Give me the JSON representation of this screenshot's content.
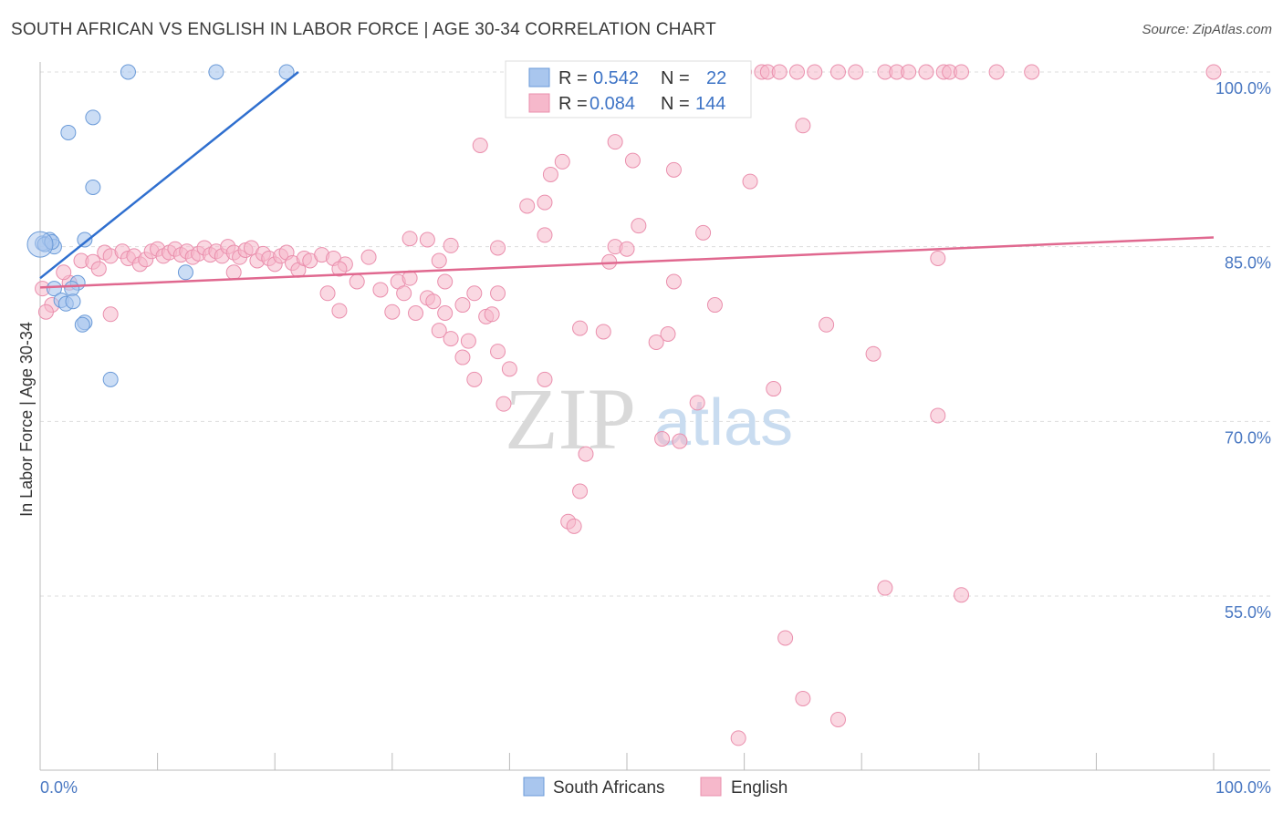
{
  "title": "SOUTH AFRICAN VS ENGLISH IN LABOR FORCE | AGE 30-34 CORRELATION CHART",
  "source": "Source: ZipAtlas.com",
  "watermark": {
    "zip": "ZIP",
    "atlas": "atlas"
  },
  "legend": {
    "rows": [
      {
        "r_label": "R =",
        "r_value": "0.542",
        "n_label": "N =",
        "n_value": "22"
      },
      {
        "r_label": "R =",
        "r_value": "0.084",
        "n_label": "N =",
        "n_value": "144"
      }
    ]
  },
  "bottom_legend": [
    "South Africans",
    "English"
  ],
  "colors": {
    "blue_fill": "#a9c6ee",
    "blue_stroke": "#6a9ad8",
    "blue_line": "#2f6fcf",
    "pink_fill": "#f6b8cb",
    "pink_stroke": "#ea8fad",
    "pink_line": "#e0688f",
    "grid": "#dddddd",
    "tick_text": "#4a78c2"
  },
  "chart_data": {
    "type": "scatter",
    "title": "SOUTH AFRICAN VS ENGLISH IN LABOR FORCE | AGE 30-34 CORRELATION CHART",
    "xlabel": "",
    "ylabel": "In Labor Force | Age 30-34",
    "xlim": [
      0,
      100
    ],
    "ylim": [
      40,
      101
    ],
    "x_ticks": [
      "0.0%",
      "100.0%"
    ],
    "y_ticks": [
      {
        "value": 100,
        "label": "100.0%"
      },
      {
        "value": 85,
        "label": "85.0%"
      },
      {
        "value": 70,
        "label": "70.0%"
      },
      {
        "value": 55,
        "label": "55.0%"
      }
    ],
    "series": [
      {
        "name": "South Africans",
        "color": "#a9c6ee",
        "trend": {
          "x": [
            0,
            22
          ],
          "y": [
            82.3,
            100
          ]
        },
        "points": [
          {
            "x": 7.5,
            "y": 100
          },
          {
            "x": 15,
            "y": 100
          },
          {
            "x": 21,
            "y": 100
          },
          {
            "x": 4.5,
            "y": 96.1
          },
          {
            "x": 2.4,
            "y": 94.8
          },
          {
            "x": 4.5,
            "y": 90.1
          },
          {
            "x": 0.2,
            "y": 85.3
          },
          {
            "x": 0.8,
            "y": 85.6
          },
          {
            "x": 1.2,
            "y": 85.0
          },
          {
            "x": 3.8,
            "y": 85.6
          },
          {
            "x": 12.4,
            "y": 82.8
          },
          {
            "x": 1.2,
            "y": 81.4
          },
          {
            "x": 3.2,
            "y": 81.9
          },
          {
            "x": 2.7,
            "y": 81.4
          },
          {
            "x": 1.8,
            "y": 80.4
          },
          {
            "x": 2.2,
            "y": 80.1
          },
          {
            "x": 2.8,
            "y": 80.3
          },
          {
            "x": 3.8,
            "y": 78.5
          },
          {
            "x": 3.6,
            "y": 78.3
          },
          {
            "x": 6.0,
            "y": 73.6
          },
          {
            "x": 0.4,
            "y": 85.2
          },
          {
            "x": 1.0,
            "y": 85.4
          }
        ]
      },
      {
        "name": "English",
        "color": "#f6b8cb",
        "trend": {
          "x": [
            0,
            100
          ],
          "y": [
            81.5,
            85.8
          ]
        },
        "points": [
          {
            "x": 51,
            "y": 100
          },
          {
            "x": 52.5,
            "y": 100
          },
          {
            "x": 56,
            "y": 100
          },
          {
            "x": 60,
            "y": 100
          },
          {
            "x": 61.5,
            "y": 100
          },
          {
            "x": 62,
            "y": 100
          },
          {
            "x": 63,
            "y": 100
          },
          {
            "x": 64.5,
            "y": 100
          },
          {
            "x": 66,
            "y": 100
          },
          {
            "x": 68,
            "y": 100
          },
          {
            "x": 69.5,
            "y": 100
          },
          {
            "x": 72,
            "y": 100
          },
          {
            "x": 73,
            "y": 100
          },
          {
            "x": 74,
            "y": 100
          },
          {
            "x": 75.5,
            "y": 100
          },
          {
            "x": 77,
            "y": 100
          },
          {
            "x": 77.5,
            "y": 100
          },
          {
            "x": 78.5,
            "y": 100
          },
          {
            "x": 81.5,
            "y": 100
          },
          {
            "x": 84.5,
            "y": 100
          },
          {
            "x": 100,
            "y": 100
          },
          {
            "x": 52,
            "y": 99.5
          },
          {
            "x": 65,
            "y": 95.4
          },
          {
            "x": 49,
            "y": 94.0
          },
          {
            "x": 37.5,
            "y": 93.7
          },
          {
            "x": 50.5,
            "y": 92.4
          },
          {
            "x": 44.5,
            "y": 92.3
          },
          {
            "x": 43.5,
            "y": 91.2
          },
          {
            "x": 54,
            "y": 91.6
          },
          {
            "x": 60.5,
            "y": 90.6
          },
          {
            "x": 43.0,
            "y": 88.8
          },
          {
            "x": 41.5,
            "y": 88.5
          },
          {
            "x": 51,
            "y": 86.8
          },
          {
            "x": 43.0,
            "y": 86.0
          },
          {
            "x": 56.5,
            "y": 86.2
          },
          {
            "x": 39.0,
            "y": 84.9
          },
          {
            "x": 49,
            "y": 85.0
          },
          {
            "x": 50,
            "y": 84.8
          },
          {
            "x": 48.5,
            "y": 83.7
          },
          {
            "x": 76.5,
            "y": 84.0
          },
          {
            "x": 33,
            "y": 85.6
          },
          {
            "x": 31.5,
            "y": 85.7
          },
          {
            "x": 35.0,
            "y": 85.1
          },
          {
            "x": 2.5,
            "y": 81.9
          },
          {
            "x": 2.0,
            "y": 82.8
          },
          {
            "x": 3.5,
            "y": 83.8
          },
          {
            "x": 4.5,
            "y": 83.7
          },
          {
            "x": 5.0,
            "y": 83.1
          },
          {
            "x": 5.5,
            "y": 84.5
          },
          {
            "x": 6.0,
            "y": 84.2
          },
          {
            "x": 7.0,
            "y": 84.6
          },
          {
            "x": 7.5,
            "y": 84.0
          },
          {
            "x": 8.0,
            "y": 84.2
          },
          {
            "x": 8.5,
            "y": 83.5
          },
          {
            "x": 9.0,
            "y": 83.9
          },
          {
            "x": 9.5,
            "y": 84.6
          },
          {
            "x": 10.0,
            "y": 84.8
          },
          {
            "x": 10.5,
            "y": 84.2
          },
          {
            "x": 11.0,
            "y": 84.5
          },
          {
            "x": 11.5,
            "y": 84.8
          },
          {
            "x": 12.0,
            "y": 84.3
          },
          {
            "x": 12.5,
            "y": 84.6
          },
          {
            "x": 13.0,
            "y": 84.1
          },
          {
            "x": 13.5,
            "y": 84.4
          },
          {
            "x": 14.0,
            "y": 84.9
          },
          {
            "x": 14.5,
            "y": 84.3
          },
          {
            "x": 15.0,
            "y": 84.6
          },
          {
            "x": 15.5,
            "y": 84.2
          },
          {
            "x": 16.0,
            "y": 85.0
          },
          {
            "x": 16.5,
            "y": 84.5
          },
          {
            "x": 17.0,
            "y": 84.1
          },
          {
            "x": 17.5,
            "y": 84.7
          },
          {
            "x": 18.0,
            "y": 84.9
          },
          {
            "x": 18.5,
            "y": 83.8
          },
          {
            "x": 19.0,
            "y": 84.4
          },
          {
            "x": 19.5,
            "y": 84.0
          },
          {
            "x": 20.0,
            "y": 83.5
          },
          {
            "x": 20.5,
            "y": 84.2
          },
          {
            "x": 21.0,
            "y": 84.5
          },
          {
            "x": 21.5,
            "y": 83.6
          },
          {
            "x": 22.0,
            "y": 83.0
          },
          {
            "x": 22.5,
            "y": 84.0
          },
          {
            "x": 23.0,
            "y": 83.8
          },
          {
            "x": 24.0,
            "y": 84.3
          },
          {
            "x": 25.0,
            "y": 84.0
          },
          {
            "x": 26.0,
            "y": 83.5
          },
          {
            "x": 27.0,
            "y": 82.0
          },
          {
            "x": 28.0,
            "y": 84.1
          },
          {
            "x": 29.0,
            "y": 81.3
          },
          {
            "x": 30.5,
            "y": 82.0
          },
          {
            "x": 31.0,
            "y": 81.0
          },
          {
            "x": 33.0,
            "y": 80.6
          },
          {
            "x": 33.5,
            "y": 80.3
          },
          {
            "x": 34.5,
            "y": 79.3
          },
          {
            "x": 36.0,
            "y": 80.0
          },
          {
            "x": 37.0,
            "y": 81.0
          },
          {
            "x": 38.0,
            "y": 79.0
          },
          {
            "x": 38.5,
            "y": 79.2
          },
          {
            "x": 39.0,
            "y": 81.0
          },
          {
            "x": 24.5,
            "y": 81.0
          },
          {
            "x": 25.5,
            "y": 79.5
          },
          {
            "x": 30,
            "y": 79.4
          },
          {
            "x": 32,
            "y": 79.3
          },
          {
            "x": 31.5,
            "y": 82.3
          },
          {
            "x": 34.5,
            "y": 82.0
          },
          {
            "x": 34,
            "y": 83.8
          },
          {
            "x": 25.5,
            "y": 83.1
          },
          {
            "x": 16.5,
            "y": 82.8
          },
          {
            "x": 6.0,
            "y": 79.2
          },
          {
            "x": 1.0,
            "y": 80.0
          },
          {
            "x": 0.5,
            "y": 79.4
          },
          {
            "x": 35,
            "y": 77.1
          },
          {
            "x": 34,
            "y": 77.8
          },
          {
            "x": 36.5,
            "y": 76.9
          },
          {
            "x": 36.0,
            "y": 75.5
          },
          {
            "x": 39,
            "y": 76.0
          },
          {
            "x": 40,
            "y": 74.5
          },
          {
            "x": 43.0,
            "y": 73.6
          },
          {
            "x": 37.0,
            "y": 73.6
          },
          {
            "x": 39.5,
            "y": 71.5
          },
          {
            "x": 46.0,
            "y": 78.0
          },
          {
            "x": 48.0,
            "y": 77.7
          },
          {
            "x": 52.5,
            "y": 76.8
          },
          {
            "x": 53.5,
            "y": 77.5
          },
          {
            "x": 57.5,
            "y": 80.0
          },
          {
            "x": 54.0,
            "y": 82.0
          },
          {
            "x": 67.0,
            "y": 78.3
          },
          {
            "x": 71.0,
            "y": 75.8
          },
          {
            "x": 62.5,
            "y": 72.8
          },
          {
            "x": 56.0,
            "y": 71.6
          },
          {
            "x": 53.0,
            "y": 68.5
          },
          {
            "x": 54.5,
            "y": 68.3
          },
          {
            "x": 76.5,
            "y": 70.5
          },
          {
            "x": 46.5,
            "y": 67.2
          },
          {
            "x": 46.0,
            "y": 64.0
          },
          {
            "x": 45.0,
            "y": 61.4
          },
          {
            "x": 45.5,
            "y": 61.0
          },
          {
            "x": 72.0,
            "y": 55.7
          },
          {
            "x": 78.5,
            "y": 55.1
          },
          {
            "x": 63.5,
            "y": 51.4
          },
          {
            "x": 65.0,
            "y": 46.2
          },
          {
            "x": 68.0,
            "y": 44.4
          },
          {
            "x": 59.5,
            "y": 42.8
          },
          {
            "x": 0.2,
            "y": 81.4
          }
        ]
      }
    ]
  }
}
